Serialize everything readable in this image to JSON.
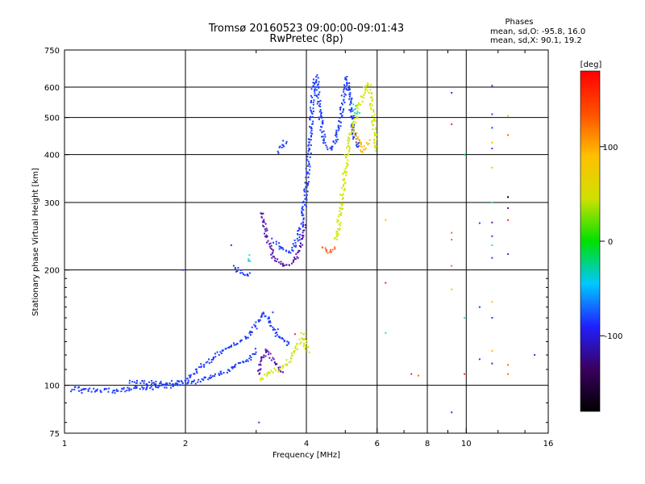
{
  "chart_data": {
    "type": "scatter",
    "title": "Tromsø 20160523 09:00:00-09:01:43",
    "subtitle": "RwPretec (8p)",
    "xlabel": "Frequency [MHz]",
    "ylabel": "Stationary phase Virtual Height [km]",
    "xscale": "log",
    "yscale": "log",
    "xlim": [
      1,
      16
    ],
    "ylim": [
      75,
      750
    ],
    "x_ticks": [
      1,
      2,
      4,
      6,
      8,
      10,
      16
    ],
    "y_ticks": [
      75,
      100,
      200,
      300,
      400,
      500,
      600,
      750
    ],
    "grid": true,
    "phase_stats": {
      "title": "Phases",
      "o_line": "mean, sd,O: -95.8, 16.0",
      "x_line": "mean, sd,X:  90.1, 19.2"
    },
    "colorbar": {
      "label": "[deg]",
      "range": [
        -180,
        180
      ],
      "ticks": [
        100,
        0,
        -100
      ],
      "colormap": [
        "#000000",
        "#3a0060",
        "#2020ff",
        "#00c8ff",
        "#00e000",
        "#d0e000",
        "#ffc000",
        "#ff5000",
        "#ff0000"
      ]
    },
    "traces": [
      {
        "color": "#1c3cff",
        "points": [
          [
            1.03,
            98
          ],
          [
            1.06,
            99
          ],
          [
            1.1,
            97
          ],
          [
            1.15,
            98
          ],
          [
            1.2,
            97
          ],
          [
            1.26,
            98
          ],
          [
            1.32,
            97
          ],
          [
            1.38,
            98
          ],
          [
            1.45,
            98
          ],
          [
            1.52,
            99
          ],
          [
            1.6,
            99
          ],
          [
            1.68,
            99
          ],
          [
            1.76,
            100
          ],
          [
            1.85,
            100
          ],
          [
            1.94,
            101
          ],
          [
            2.02,
            101
          ],
          [
            2.1,
            102
          ],
          [
            2.2,
            104
          ],
          [
            2.3,
            106
          ],
          [
            2.42,
            108
          ],
          [
            2.55,
            110
          ],
          [
            2.68,
            113
          ],
          [
            2.8,
            116
          ],
          [
            2.92,
            120
          ],
          [
            3.0,
            125
          ]
        ]
      },
      {
        "color": "#1c3cff",
        "points": [
          [
            1.45,
            103
          ],
          [
            1.6,
            102
          ],
          [
            1.97,
            102
          ],
          [
            2.12,
            110
          ],
          [
            2.3,
            117
          ],
          [
            2.48,
            124
          ],
          [
            2.62,
            128
          ],
          [
            2.74,
            131
          ],
          [
            2.86,
            136
          ],
          [
            2.96,
            142
          ],
          [
            3.03,
            148
          ],
          [
            3.1,
            155
          ],
          [
            3.2,
            150
          ],
          [
            3.3,
            141
          ],
          [
            3.4,
            134
          ],
          [
            3.52,
            130
          ],
          [
            3.64,
            128
          ]
        ]
      },
      {
        "color": "#5a14b4",
        "points": [
          [
            3.02,
            108
          ],
          [
            3.1,
            118
          ],
          [
            3.18,
            124
          ],
          [
            3.28,
            118
          ],
          [
            3.38,
            112
          ],
          [
            3.48,
            108
          ]
        ]
      },
      {
        "color": "#d2e600",
        "points": [
          [
            3.05,
            104
          ],
          [
            3.2,
            108
          ],
          [
            3.48,
            112
          ],
          [
            3.62,
            118
          ],
          [
            3.72,
            124
          ],
          [
            3.82,
            130
          ],
          [
            3.9,
            136
          ],
          [
            3.96,
            128
          ],
          [
            4.02,
            122
          ]
        ]
      },
      {
        "color": "#1c3cff",
        "points": [
          [
            2.62,
            205
          ],
          [
            2.7,
            200
          ],
          [
            2.8,
            197
          ],
          [
            2.9,
            196
          ]
        ]
      },
      {
        "color": "#28dcdc",
        "points": [
          [
            2.86,
            210
          ],
          [
            2.9,
            220
          ]
        ]
      },
      {
        "color": "#5a14b4",
        "points": [
          [
            3.1,
            285
          ],
          [
            3.14,
            260
          ],
          [
            3.18,
            242
          ],
          [
            3.24,
            228
          ],
          [
            3.3,
            218
          ],
          [
            3.38,
            212
          ],
          [
            3.46,
            208
          ],
          [
            3.54,
            205
          ],
          [
            3.62,
            206
          ],
          [
            3.7,
            210
          ],
          [
            3.78,
            218
          ],
          [
            3.84,
            228
          ],
          [
            3.9,
            245
          ],
          [
            3.95,
            265
          ]
        ]
      },
      {
        "color": "#1c3cff",
        "points": [
          [
            3.3,
            240
          ],
          [
            3.4,
            232
          ],
          [
            3.56,
            222
          ],
          [
            3.7,
            228
          ],
          [
            3.78,
            240
          ],
          [
            3.86,
            262
          ],
          [
            3.94,
            300
          ],
          [
            4.0,
            345
          ],
          [
            4.04,
            400
          ],
          [
            4.08,
            460
          ],
          [
            4.12,
            540
          ],
          [
            4.16,
            620
          ],
          [
            4.22,
            640
          ],
          [
            4.28,
            560
          ],
          [
            4.34,
            480
          ],
          [
            4.42,
            430
          ],
          [
            4.52,
            415
          ],
          [
            4.62,
            420
          ],
          [
            4.72,
            440
          ],
          [
            4.82,
            480
          ],
          [
            4.92,
            560
          ],
          [
            5.0,
            640
          ],
          [
            5.08,
            600
          ],
          [
            5.16,
            520
          ],
          [
            5.24,
            440
          ],
          [
            5.32,
            420
          ],
          [
            5.4,
            440
          ]
        ]
      },
      {
        "color": "#1c3cff",
        "points": [
          [
            3.4,
            410
          ],
          [
            3.48,
            430
          ],
          [
            3.56,
            440
          ]
        ]
      },
      {
        "color": "#ff6428",
        "points": [
          [
            4.34,
            232
          ],
          [
            4.42,
            228
          ],
          [
            4.52,
            224
          ],
          [
            4.62,
            226
          ],
          [
            4.72,
            232
          ]
        ]
      },
      {
        "color": "#d2e600",
        "points": [
          [
            4.7,
            240
          ],
          [
            4.78,
            260
          ],
          [
            4.84,
            285
          ],
          [
            4.9,
            320
          ],
          [
            4.96,
            360
          ],
          [
            5.02,
            400
          ],
          [
            5.1,
            440
          ],
          [
            5.18,
            470
          ],
          [
            5.28,
            500
          ],
          [
            5.38,
            540
          ],
          [
            5.48,
            560
          ],
          [
            5.58,
            600
          ],
          [
            5.68,
            620
          ],
          [
            5.78,
            560
          ],
          [
            5.84,
            500
          ],
          [
            5.9,
            450
          ],
          [
            5.94,
            410
          ]
        ]
      },
      {
        "color": "#ffbe00",
        "points": [
          [
            5.28,
            460
          ],
          [
            5.38,
            430
          ],
          [
            5.48,
            410
          ],
          [
            5.58,
            420
          ],
          [
            5.68,
            440
          ]
        ]
      },
      {
        "color": "#28dcdc",
        "points": [
          [
            5.22,
            540
          ],
          [
            5.3,
            520
          ],
          [
            5.4,
            510
          ]
        ]
      }
    ],
    "scatter": [
      {
        "x": 9.2,
        "y": 580,
        "color": "#1c3cff"
      },
      {
        "x": 9.2,
        "y": 480,
        "color": "#ff2828"
      },
      {
        "x": 9.2,
        "y": 250,
        "color": "#ff6428"
      },
      {
        "x": 9.2,
        "y": 240,
        "color": "#ff6428"
      },
      {
        "x": 9.2,
        "y": 205,
        "color": "#ff6428"
      },
      {
        "x": 9.2,
        "y": 178,
        "color": "#ffbe00"
      },
      {
        "x": 9.2,
        "y": 85,
        "color": "#1c3cff"
      },
      {
        "x": 9.9,
        "y": 400,
        "color": "#00dc50"
      },
      {
        "x": 9.9,
        "y": 150,
        "color": "#28dcdc"
      },
      {
        "x": 9.9,
        "y": 107,
        "color": "#ff2828"
      },
      {
        "x": 10.8,
        "y": 265,
        "color": "#1c3cff"
      },
      {
        "x": 10.8,
        "y": 160,
        "color": "#1c3cff"
      },
      {
        "x": 10.8,
        "y": 117,
        "color": "#1c3cff"
      },
      {
        "x": 11.6,
        "y": 605,
        "color": "#1c3cff"
      },
      {
        "x": 11.6,
        "y": 510,
        "color": "#1c3cff"
      },
      {
        "x": 11.6,
        "y": 470,
        "color": "#1c3cff"
      },
      {
        "x": 11.6,
        "y": 430,
        "color": "#ffbe00"
      },
      {
        "x": 11.6,
        "y": 415,
        "color": "#1c3cff"
      },
      {
        "x": 11.6,
        "y": 370,
        "color": "#ffbe00"
      },
      {
        "x": 11.6,
        "y": 300,
        "color": "#28dcdc"
      },
      {
        "x": 11.6,
        "y": 266,
        "color": "#5a14b4"
      },
      {
        "x": 11.6,
        "y": 245,
        "color": "#1c3cff"
      },
      {
        "x": 11.6,
        "y": 232,
        "color": "#28dcdc"
      },
      {
        "x": 11.6,
        "y": 215,
        "color": "#1c3cff"
      },
      {
        "x": 11.6,
        "y": 165,
        "color": "#ffbe00"
      },
      {
        "x": 11.6,
        "y": 150,
        "color": "#1c3cff"
      },
      {
        "x": 11.6,
        "y": 123,
        "color": "#ffbe00"
      },
      {
        "x": 11.6,
        "y": 114,
        "color": "#5a14b4"
      },
      {
        "x": 12.7,
        "y": 505,
        "color": "#ffbe00"
      },
      {
        "x": 12.7,
        "y": 450,
        "color": "#ff6428"
      },
      {
        "x": 12.7,
        "y": 310,
        "color": "#000000"
      },
      {
        "x": 12.7,
        "y": 290,
        "color": "#5a14b4"
      },
      {
        "x": 12.7,
        "y": 270,
        "color": "#ff2828"
      },
      {
        "x": 12.7,
        "y": 220,
        "color": "#1c3cff"
      },
      {
        "x": 12.7,
        "y": 113,
        "color": "#ff6428"
      },
      {
        "x": 12.7,
        "y": 107,
        "color": "#ff6428"
      },
      {
        "x": 14.8,
        "y": 120,
        "color": "#1c3cff"
      },
      {
        "x": 6.3,
        "y": 270,
        "color": "#ffbe00"
      },
      {
        "x": 6.3,
        "y": 185,
        "color": "#ff2828"
      },
      {
        "x": 6.3,
        "y": 137,
        "color": "#28dcdc"
      },
      {
        "x": 7.3,
        "y": 107,
        "color": "#ff2828"
      },
      {
        "x": 7.6,
        "y": 106,
        "color": "#ff6428"
      },
      {
        "x": 3.3,
        "y": 155,
        "color": "#1c3cff"
      },
      {
        "x": 3.4,
        "y": 140,
        "color": "#1c3cff"
      },
      {
        "x": 3.75,
        "y": 136,
        "color": "#ff2828"
      },
      {
        "x": 2.6,
        "y": 232,
        "color": "#1c3cff"
      },
      {
        "x": 1.97,
        "y": 200,
        "color": "#1c3cff"
      },
      {
        "x": 3.05,
        "y": 80,
        "color": "#1c3cff"
      }
    ]
  }
}
